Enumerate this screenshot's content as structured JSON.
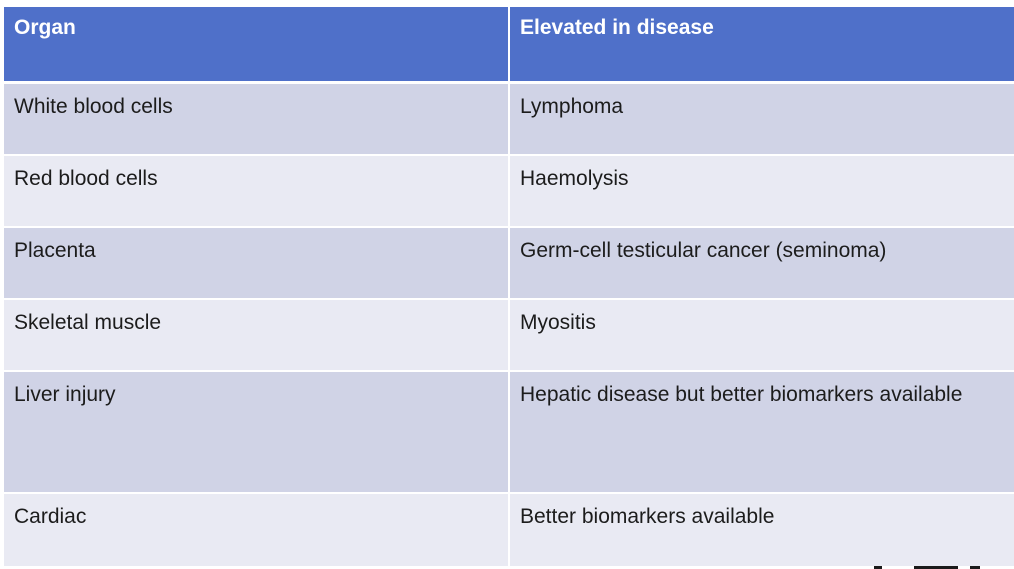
{
  "table": {
    "headers": [
      "Organ",
      "Elevated in disease"
    ],
    "rows": [
      {
        "organ": "White blood cells",
        "disease": "Lymphoma"
      },
      {
        "organ": "Red blood cells",
        "disease": "Haemolysis"
      },
      {
        "organ": "Placenta",
        "disease": "Germ-cell testicular cancer (seminoma)"
      },
      {
        "organ": "Skeletal muscle",
        "disease": "Myositis"
      },
      {
        "organ": "Liver injury",
        "disease": "Hepatic disease but better biomarkers available"
      },
      {
        "organ": "Cardiac",
        "disease": "Better biomarkers available"
      }
    ]
  },
  "colors": {
    "header_bg": "#4f70c9",
    "row_dark": "#d0d3e6",
    "row_light": "#e9eaf3"
  }
}
